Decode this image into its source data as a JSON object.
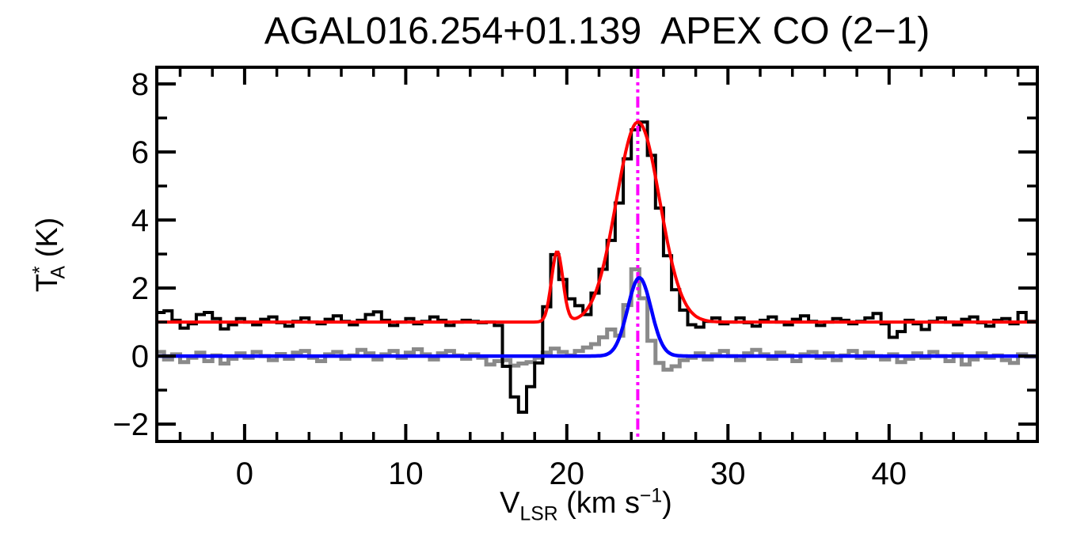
{
  "chart_data": {
    "type": "line",
    "title": "AGAL016.254+01.139  APEX CO (2−1)",
    "xlabel_parts": [
      {
        "t": "V"
      },
      {
        "t": "LSR",
        "pos": "sub"
      },
      {
        "t": " (km s"
      },
      {
        "t": "−1",
        "pos": "sup"
      },
      {
        "t": ")"
      }
    ],
    "ylabel_parts": [
      {
        "t": "T"
      },
      {
        "t": "*",
        "pos": "sup"
      },
      {
        "t": "A",
        "pos": "sub",
        "stack": true
      },
      {
        "t": " (K)"
      }
    ],
    "xlim": [
      -5.45,
      49.2
    ],
    "ylim": [
      -2.51,
      8.49
    ],
    "x_major_ticks": [
      0,
      10,
      20,
      30,
      40
    ],
    "x_minor_step": 2,
    "y_major_ticks": [
      -2,
      0,
      2,
      4,
      6,
      8
    ],
    "y_minor_step": 1,
    "grid": false,
    "legend": "none",
    "colors": {
      "observed": "#000000",
      "secondary": "#8a8a8a",
      "observed_fit": "#ff0000",
      "secondary_fit": "#0000ff",
      "velocity_marker": "#ff00ff",
      "axis": "#000000",
      "background": "#ffffff"
    },
    "black_histogram": {
      "name": "observed-spectrum",
      "baseline_offset": 1.0,
      "v_start": -5.25,
      "dv": 0.5,
      "values": [
        1.28,
        1.33,
        1.05,
        0.82,
        0.95,
        1.22,
        1.28,
        1.1,
        0.8,
        0.92,
        1.1,
        1.0,
        0.92,
        1.08,
        1.15,
        0.98,
        0.88,
        1.02,
        1.12,
        1.0,
        0.95,
        1.08,
        1.18,
        1.02,
        0.92,
        1.05,
        1.22,
        1.3,
        1.05,
        0.9,
        1.0,
        1.1,
        0.95,
        1.02,
        1.15,
        1.05,
        0.9,
        1.0,
        1.05,
        1.02,
        0.98,
        1.0,
        0.9,
        -0.3,
        -1.2,
        -1.65,
        -0.9,
        -0.2,
        1.45,
        2.98,
        2.25,
        1.68,
        1.48,
        1.22,
        1.85,
        2.55,
        3.4,
        4.5,
        5.8,
        6.65,
        6.88,
        5.9,
        4.35,
        2.95,
        1.95,
        1.35,
        0.92,
        0.85,
        1.02,
        1.12,
        0.95,
        1.0,
        1.12,
        0.98,
        0.88,
        1.05,
        1.15,
        1.0,
        0.92,
        1.08,
        1.18,
        1.02,
        0.9,
        1.0,
        1.1,
        1.05,
        0.95,
        1.02,
        1.12,
        1.25,
        0.95,
        0.55,
        0.72,
        1.05,
        0.95,
        0.78,
        1.02,
        1.12,
        1.0,
        0.92,
        1.08,
        1.15,
        0.98,
        0.88,
        1.05,
        1.1,
        0.95,
        1.28,
        1.02
      ]
    },
    "gray_histogram": {
      "name": "secondary-spectrum",
      "baseline_offset": 0.0,
      "v_start": -5.25,
      "dv": 0.5,
      "values": [
        0.12,
        -0.1,
        0.05,
        -0.18,
        -0.05,
        0.1,
        -0.15,
        0.02,
        -0.22,
        -0.08,
        0.08,
        -0.05,
        0.12,
        0.0,
        -0.12,
        0.06,
        -0.08,
        0.1,
        0.15,
        -0.05,
        -0.15,
        0.05,
        0.12,
        -0.08,
        0.02,
        0.18,
        0.08,
        -0.1,
        0.05,
        0.15,
        -0.05,
        0.1,
        0.2,
        0.05,
        -0.1,
        0.08,
        0.15,
        0.02,
        -0.08,
        0.05,
        -0.05,
        -0.25,
        -0.15,
        -0.12,
        -0.28,
        -0.22,
        -0.18,
        -0.05,
        0.1,
        0.22,
        0.12,
        0.02,
        0.15,
        0.25,
        0.35,
        0.55,
        0.78,
        0.6,
        1.5,
        2.55,
        1.7,
        0.45,
        -0.2,
        -0.4,
        -0.3,
        -0.12,
        -0.05,
        0.08,
        -0.1,
        0.05,
        0.15,
        0.0,
        -0.12,
        0.08,
        0.18,
        0.05,
        -0.08,
        0.1,
        0.02,
        -0.15,
        0.05,
        0.12,
        -0.05,
        0.08,
        -0.12,
        0.02,
        0.15,
        -0.05,
        0.1,
        0.0,
        -0.1,
        0.05,
        -0.18,
        -0.08,
        0.08,
        -0.05,
        0.12,
        0.0,
        -0.15,
        0.05,
        -0.25,
        -0.1,
        0.08,
        -0.05,
        0.02,
        -0.12,
        -0.2,
        0.05,
        -0.02
      ]
    },
    "red_fit": {
      "name": "observed-gaussian-fit",
      "baseline": 1.0,
      "components": [
        {
          "center": 19.4,
          "amplitude": 2.07,
          "sigma": 0.35
        },
        {
          "center": 24.42,
          "amplitude": 5.88,
          "sigma": 1.35
        }
      ]
    },
    "blue_fit": {
      "name": "secondary-gaussian-fit",
      "baseline": 0.0,
      "components": [
        {
          "center": 24.5,
          "amplitude": 2.3,
          "sigma": 0.73
        }
      ]
    },
    "vline": {
      "v": 24.4,
      "style": "dash-dot-dot"
    }
  }
}
